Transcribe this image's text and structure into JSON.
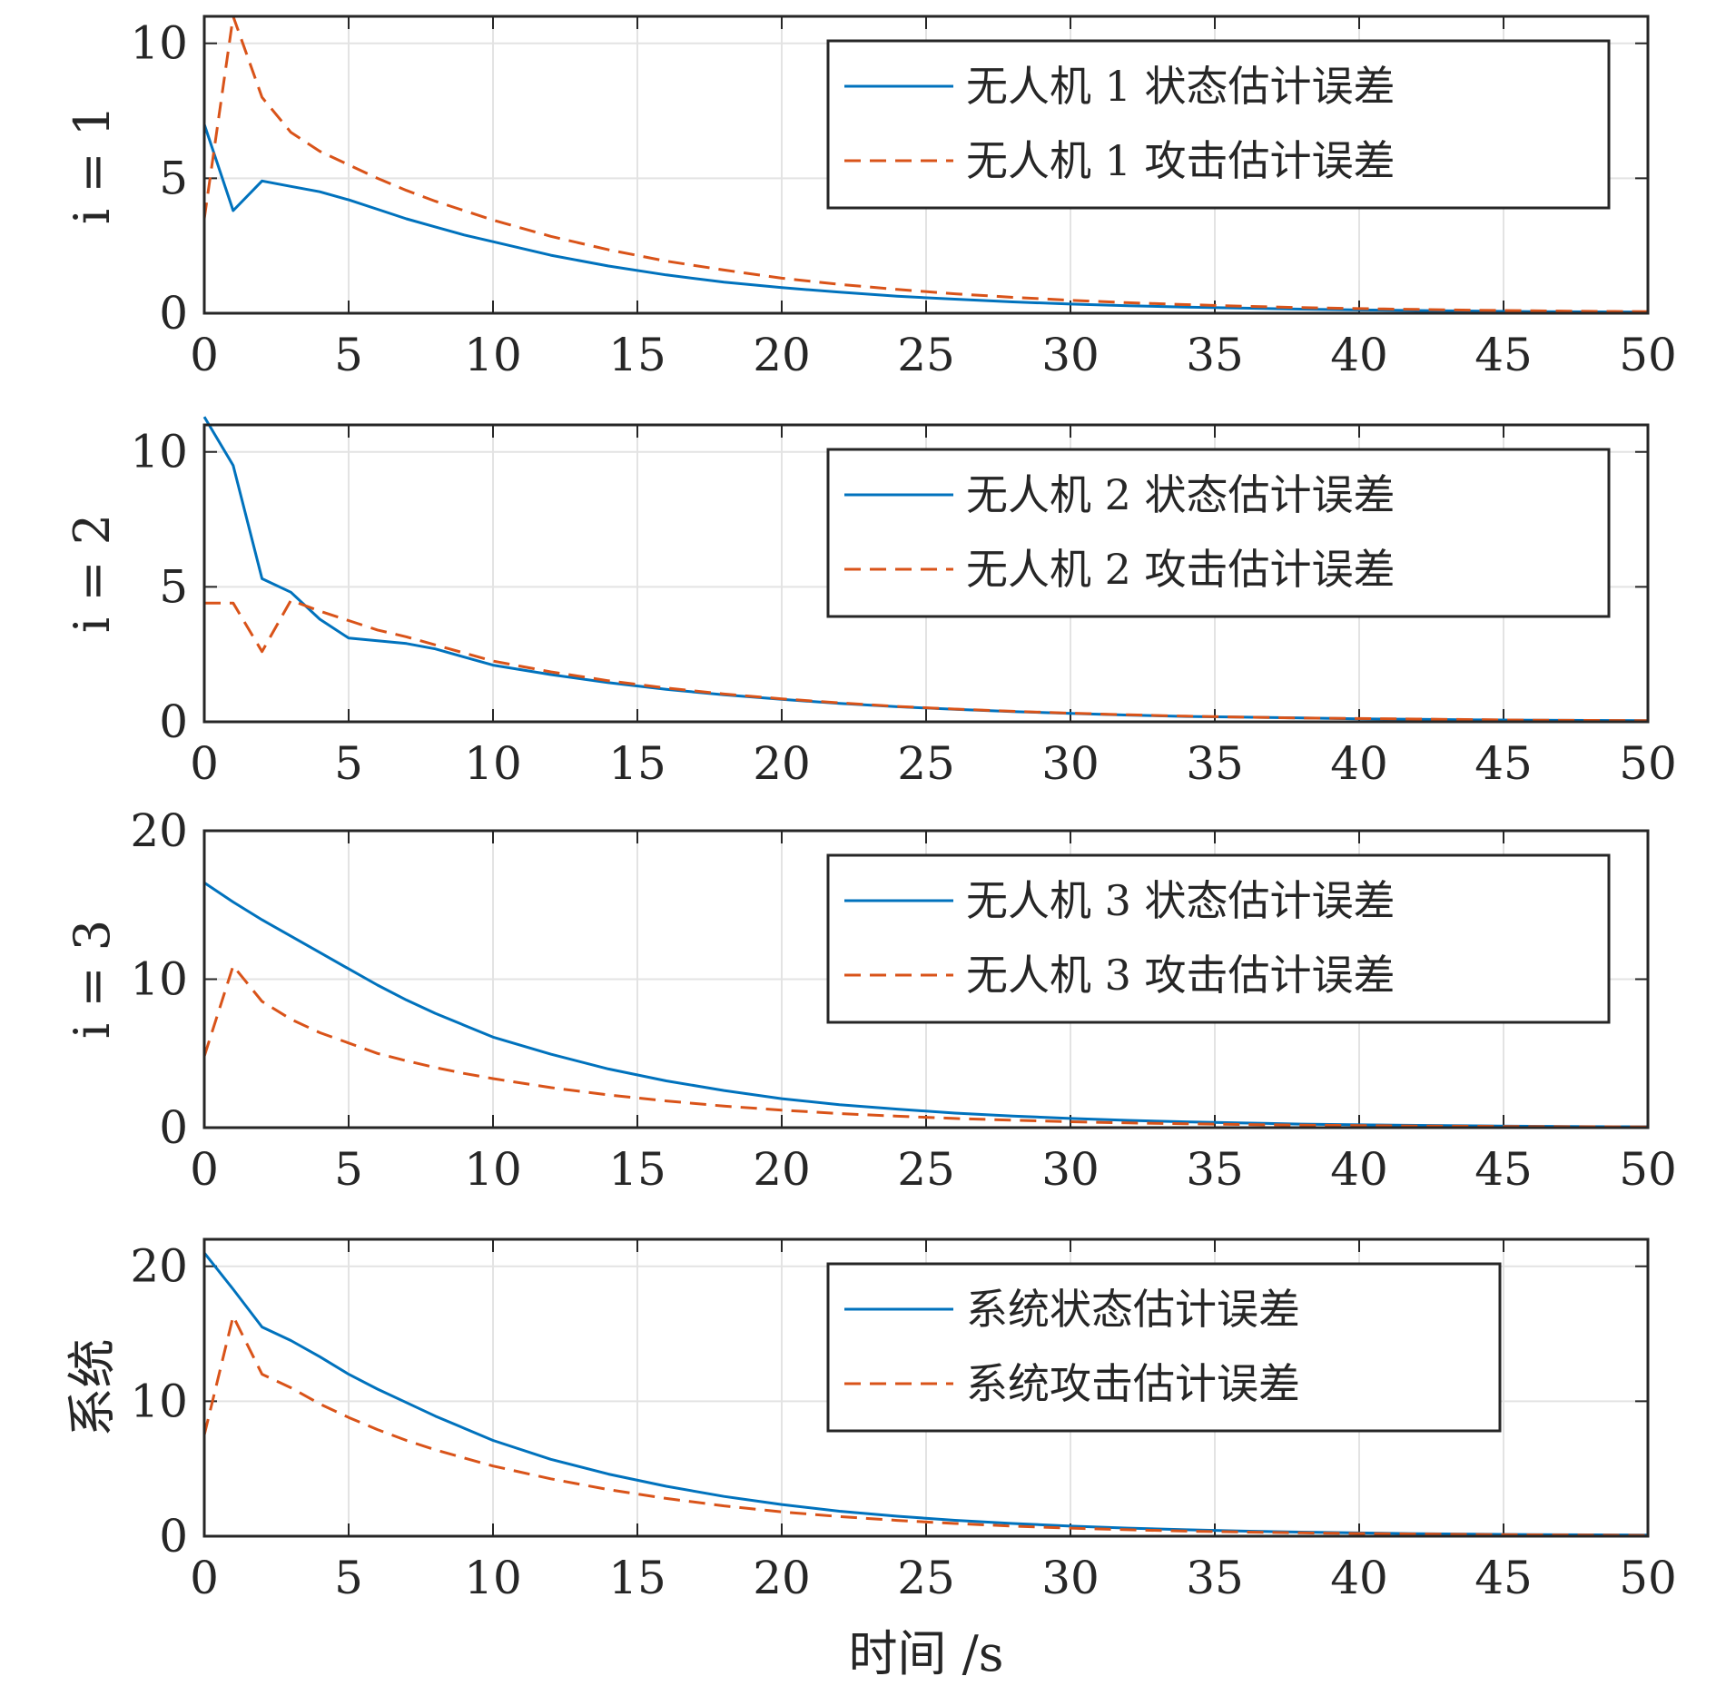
{
  "chart_data": [
    {
      "type": "line",
      "ylabel": "i = 1",
      "xlim": [
        0,
        50
      ],
      "ylim": [
        0,
        11
      ],
      "xticks": [
        "0",
        "5",
        "10",
        "15",
        "20",
        "25",
        "30",
        "35",
        "40",
        "45",
        "50"
      ],
      "yticks": [
        {
          "v": 0,
          "label": "0"
        },
        {
          "v": 5,
          "label": "5"
        },
        {
          "v": 10,
          "label": "10"
        }
      ],
      "grid": true,
      "legend_position": "top-right",
      "x": [
        0,
        1,
        2,
        3,
        4,
        5,
        6,
        7,
        8,
        9,
        10,
        12,
        14,
        16,
        18,
        20,
        22,
        24,
        26,
        28,
        30,
        32,
        34,
        36,
        38,
        40,
        42,
        44,
        46,
        48,
        50
      ],
      "series": [
        {
          "name": "无人机 1 状态估计误差",
          "color": "#0072BD",
          "dash": "solid",
          "values": [
            7.0,
            3.8,
            4.9,
            4.7,
            4.5,
            4.2,
            3.85,
            3.5,
            3.2,
            2.9,
            2.65,
            2.15,
            1.75,
            1.42,
            1.15,
            0.95,
            0.78,
            0.63,
            0.52,
            0.42,
            0.34,
            0.28,
            0.23,
            0.19,
            0.15,
            0.12,
            0.1,
            0.08,
            0.06,
            0.05,
            0.04
          ]
        },
        {
          "name": "无人机 1 攻击估计误差",
          "color": "#D95319",
          "dash": "dashed",
          "values": [
            3.5,
            11.0,
            8.0,
            6.7,
            6.0,
            5.5,
            5.0,
            4.55,
            4.15,
            3.8,
            3.45,
            2.85,
            2.35,
            1.93,
            1.6,
            1.3,
            1.07,
            0.88,
            0.72,
            0.59,
            0.48,
            0.39,
            0.32,
            0.26,
            0.21,
            0.17,
            0.14,
            0.11,
            0.09,
            0.07,
            0.06
          ]
        }
      ]
    },
    {
      "type": "line",
      "ylabel": "i = 2",
      "xlim": [
        0,
        50
      ],
      "ylim": [
        0,
        11
      ],
      "xticks": [
        "0",
        "5",
        "10",
        "15",
        "20",
        "25",
        "30",
        "35",
        "40",
        "45",
        "50"
      ],
      "yticks": [
        {
          "v": 0,
          "label": "0"
        },
        {
          "v": 5,
          "label": "5"
        },
        {
          "v": 10,
          "label": "10"
        }
      ],
      "grid": true,
      "legend_position": "top-right",
      "x": [
        0,
        1,
        2,
        3,
        4,
        5,
        6,
        7,
        8,
        9,
        10,
        12,
        14,
        16,
        18,
        20,
        22,
        24,
        26,
        28,
        30,
        32,
        34,
        36,
        38,
        40,
        42,
        44,
        46,
        48,
        50
      ],
      "series": [
        {
          "name": "无人机 2 状态估计误差",
          "color": "#0072BD",
          "dash": "solid",
          "values": [
            11.3,
            9.5,
            5.3,
            4.8,
            3.8,
            3.1,
            3.0,
            2.9,
            2.7,
            2.4,
            2.1,
            1.75,
            1.45,
            1.2,
            1.0,
            0.83,
            0.68,
            0.56,
            0.46,
            0.38,
            0.31,
            0.25,
            0.2,
            0.17,
            0.14,
            0.11,
            0.09,
            0.07,
            0.06,
            0.05,
            0.04
          ]
        },
        {
          "name": "无人机 2 攻击估计误差",
          "color": "#D95319",
          "dash": "dashed",
          "values": [
            4.4,
            4.4,
            2.6,
            4.5,
            4.1,
            3.75,
            3.4,
            3.15,
            2.85,
            2.55,
            2.25,
            1.85,
            1.52,
            1.25,
            1.03,
            0.85,
            0.7,
            0.57,
            0.47,
            0.39,
            0.32,
            0.26,
            0.21,
            0.17,
            0.14,
            0.12,
            0.1,
            0.08,
            0.06,
            0.05,
            0.04
          ]
        }
      ]
    },
    {
      "type": "line",
      "ylabel": "i = 3",
      "xlim": [
        0,
        50
      ],
      "ylim": [
        0,
        20
      ],
      "xticks": [
        "0",
        "5",
        "10",
        "15",
        "20",
        "25",
        "30",
        "35",
        "40",
        "45",
        "50"
      ],
      "yticks": [
        {
          "v": 0,
          "label": "0"
        },
        {
          "v": 10,
          "label": "10"
        },
        {
          "v": 20,
          "label": "20"
        }
      ],
      "grid": true,
      "legend_position": "top-right",
      "x": [
        0,
        1,
        2,
        3,
        4,
        5,
        6,
        7,
        8,
        9,
        10,
        12,
        14,
        16,
        18,
        20,
        22,
        24,
        26,
        28,
        30,
        32,
        34,
        36,
        38,
        40,
        42,
        44,
        46,
        48,
        50
      ],
      "series": [
        {
          "name": "无人机 3 状态估计误差",
          "color": "#0072BD",
          "dash": "solid",
          "values": [
            16.5,
            15.2,
            14.0,
            12.9,
            11.8,
            10.7,
            9.6,
            8.6,
            7.7,
            6.9,
            6.1,
            4.95,
            3.95,
            3.15,
            2.5,
            1.95,
            1.55,
            1.25,
            0.98,
            0.78,
            0.62,
            0.49,
            0.39,
            0.31,
            0.24,
            0.19,
            0.15,
            0.12,
            0.09,
            0.07,
            0.06
          ]
        },
        {
          "name": "无人机 3 攻击估计误差",
          "color": "#D95319",
          "dash": "dashed",
          "values": [
            4.8,
            10.9,
            8.5,
            7.3,
            6.4,
            5.7,
            5.0,
            4.5,
            4.05,
            3.65,
            3.3,
            2.7,
            2.2,
            1.8,
            1.45,
            1.18,
            0.95,
            0.77,
            0.62,
            0.5,
            0.4,
            0.32,
            0.26,
            0.21,
            0.17,
            0.14,
            0.11,
            0.09,
            0.07,
            0.06,
            0.05
          ]
        }
      ]
    },
    {
      "type": "line",
      "ylabel": "系统",
      "xlabel": "时间 /s",
      "xlim": [
        0,
        50
      ],
      "ylim": [
        0,
        22
      ],
      "xticks": [
        "0",
        "5",
        "10",
        "15",
        "20",
        "25",
        "30",
        "35",
        "40",
        "45",
        "50"
      ],
      "yticks": [
        {
          "v": 0,
          "label": "0"
        },
        {
          "v": 10,
          "label": "10"
        },
        {
          "v": 20,
          "label": "20"
        }
      ],
      "grid": true,
      "legend_position": "top-right",
      "x": [
        0,
        1,
        2,
        3,
        4,
        5,
        6,
        7,
        8,
        9,
        10,
        12,
        14,
        16,
        18,
        20,
        22,
        24,
        26,
        28,
        30,
        32,
        34,
        36,
        38,
        40,
        42,
        44,
        46,
        48,
        50
      ],
      "series": [
        {
          "name": "系统状态估计误差",
          "color": "#0072BD",
          "dash": "solid",
          "values": [
            21.0,
            18.3,
            15.5,
            14.5,
            13.3,
            12.0,
            10.9,
            9.9,
            8.9,
            8.0,
            7.1,
            5.7,
            4.6,
            3.7,
            2.95,
            2.35,
            1.85,
            1.48,
            1.18,
            0.94,
            0.75,
            0.6,
            0.48,
            0.38,
            0.3,
            0.24,
            0.19,
            0.15,
            0.12,
            0.1,
            0.08
          ]
        },
        {
          "name": "系统攻击估计误差",
          "color": "#D95319",
          "dash": "dashed",
          "values": [
            7.5,
            16.3,
            12.0,
            11.0,
            9.8,
            8.8,
            7.9,
            7.1,
            6.4,
            5.8,
            5.2,
            4.25,
            3.45,
            2.8,
            2.25,
            1.8,
            1.45,
            1.17,
            0.94,
            0.75,
            0.6,
            0.48,
            0.38,
            0.31,
            0.25,
            0.2,
            0.16,
            0.13,
            0.1,
            0.08,
            0.06
          ]
        }
      ]
    }
  ]
}
